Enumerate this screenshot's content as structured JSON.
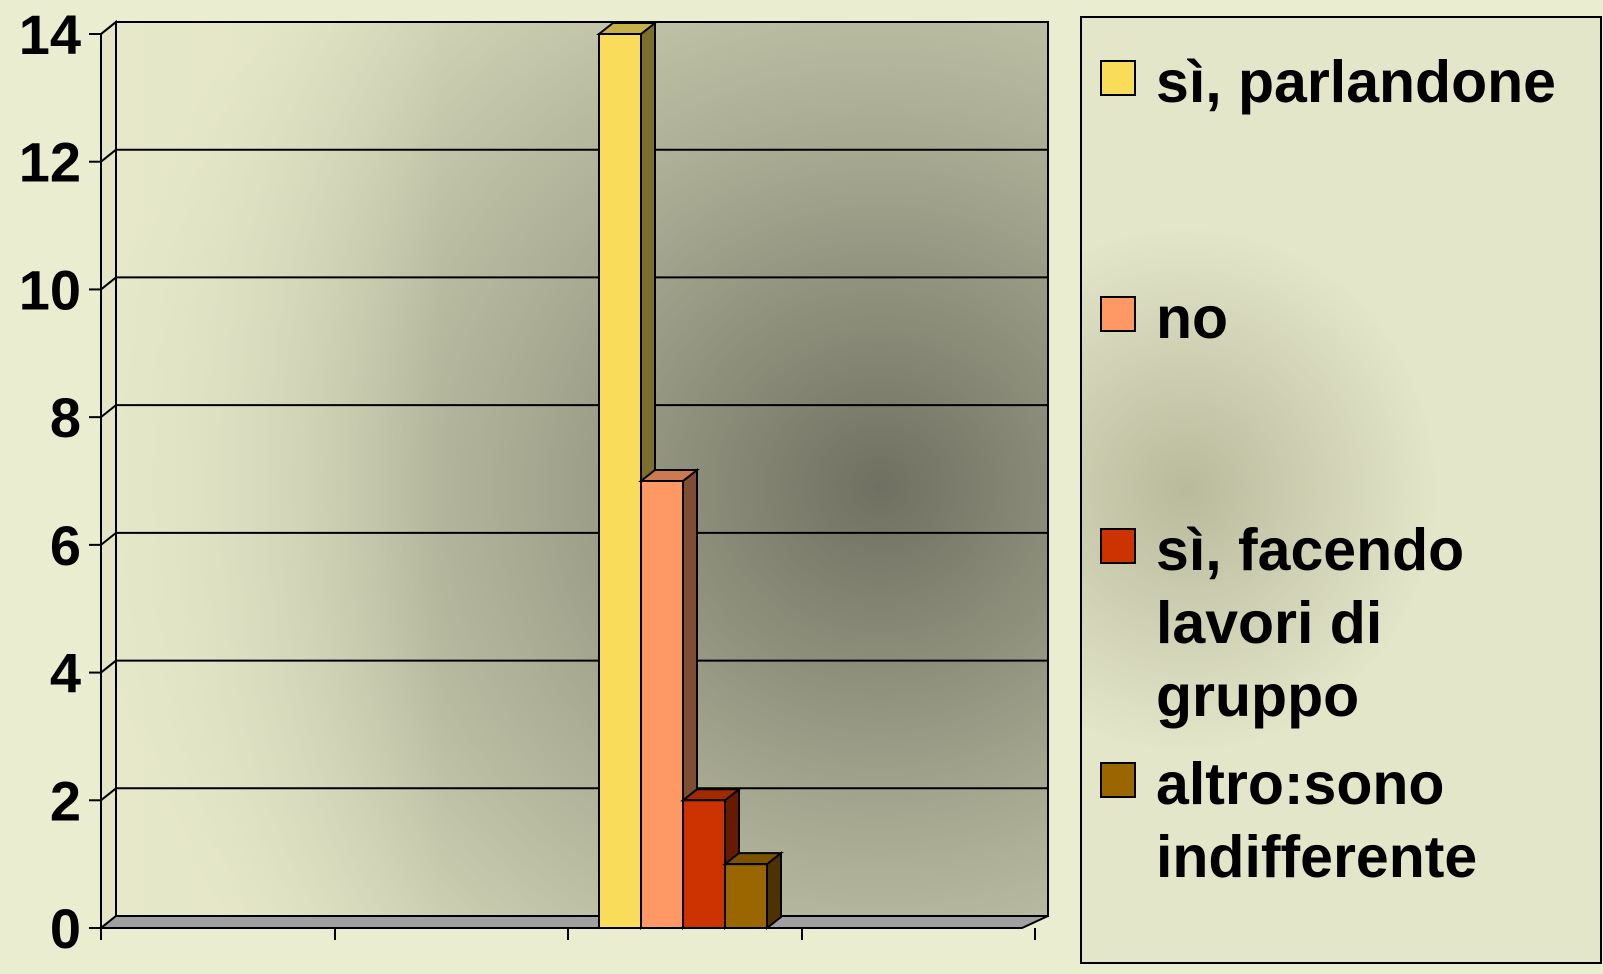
{
  "chart_data": {
    "type": "bar",
    "categories": [
      ""
    ],
    "series": [
      {
        "name": "sì, parlandone",
        "values": [
          14
        ],
        "color": "#f8dc5a"
      },
      {
        "name": "no",
        "values": [
          7
        ],
        "color": "#fe9966"
      },
      {
        "name": "sì, facendo lavori di gruppo",
        "values": [
          2
        ],
        "color": "#cc3300"
      },
      {
        "name": "altro:sono indifferente",
        "values": [
          1
        ],
        "color": "#996600"
      }
    ],
    "ylim": [
      0,
      14
    ],
    "yticks": [
      "0",
      "2",
      "4",
      "6",
      "8",
      "10",
      "12",
      "14"
    ],
    "grid": true,
    "style": "3d",
    "legend_position": "right"
  }
}
